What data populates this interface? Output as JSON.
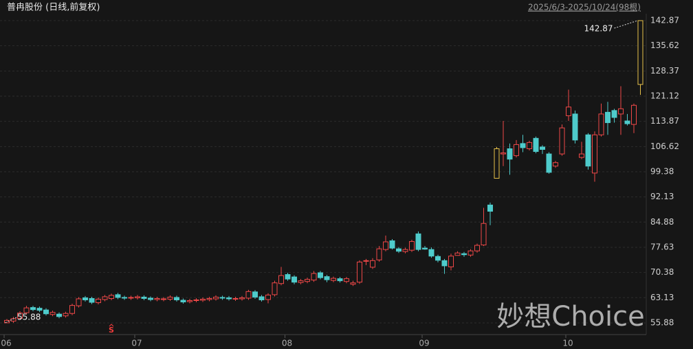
{
  "chart_data": {
    "type": "candlestick",
    "title": "普冉股份 (日线,前复权)",
    "subtitle": "2025/6/3-2025/10/24(98根)",
    "watermark": "妙想Choice",
    "categories": [
      "06",
      null,
      null,
      null,
      null,
      null,
      null,
      null,
      null,
      null,
      null,
      null,
      null,
      null,
      null,
      null,
      null,
      null,
      null,
      null,
      "07",
      null,
      null,
      null,
      null,
      null,
      null,
      null,
      null,
      null,
      null,
      null,
      null,
      null,
      null,
      null,
      null,
      null,
      null,
      null,
      null,
      null,
      null,
      "08",
      null,
      null,
      null,
      null,
      null,
      null,
      null,
      null,
      null,
      null,
      null,
      null,
      null,
      null,
      null,
      null,
      null,
      null,
      null,
      null,
      "09",
      null,
      null,
      null,
      null,
      null,
      null,
      null,
      null,
      null,
      null,
      null,
      null,
      null,
      null,
      null,
      null,
      null,
      null,
      null,
      null,
      null,
      "10",
      null,
      null,
      null,
      null,
      null,
      null,
      null,
      null,
      null,
      null,
      null
    ],
    "open": [
      55.9,
      56.4,
      57.2,
      58.8,
      60.3,
      60.1,
      59.6,
      58.3,
      58.4,
      57.9,
      58.6,
      60.8,
      63.1,
      62.9,
      61.7,
      62.6,
      62.9,
      64.0,
      63.2,
      63.0,
      63.1,
      63.3,
      63.0,
      62.6,
      62.6,
      62.7,
      63.2,
      62.4,
      62.0,
      62.3,
      62.4,
      62.6,
      62.8,
      63.2,
      63.1,
      62.7,
      62.8,
      63.0,
      64.8,
      63.4,
      62.6,
      64.0,
      67.2,
      69.8,
      69.1,
      67.5,
      67.8,
      68.2,
      70.3,
      69.2,
      68.1,
      68.6,
      67.8,
      67.0,
      67.6,
      73.6,
      71.9,
      74.0,
      77.0,
      79.5,
      77.2,
      76.4,
      76.8,
      81.5,
      77.4,
      77.0,
      75.0,
      73.8,
      72.0,
      75.3,
      75.8,
      75.4,
      76.6,
      78.3,
      89.8,
      97.5,
      104.5,
      106.0,
      104.0,
      107.5,
      106.0,
      109.0,
      106.5,
      104.5,
      101.0,
      104.5,
      115.5,
      116.0,
      103.5,
      110.0,
      99.0,
      110.0,
      116.5,
      117.0,
      116.0,
      114.0,
      113.0,
      124.5
    ],
    "high": [
      57.0,
      57.6,
      59.2,
      60.8,
      60.8,
      60.6,
      60.1,
      59.4,
      58.9,
      59.1,
      61.4,
      63.3,
      63.6,
      63.4,
      63.2,
      63.9,
      64.3,
      64.5,
      63.7,
      63.7,
      63.9,
      63.8,
      63.5,
      63.4,
      63.3,
      63.8,
      63.7,
      62.9,
      62.8,
      63.0,
      63.2,
      63.4,
      63.8,
      63.7,
      63.6,
      63.4,
      63.6,
      65.4,
      65.3,
      63.9,
      64.4,
      68.0,
      72.0,
      70.3,
      69.6,
      68.5,
      68.9,
      70.8,
      70.8,
      69.7,
      69.2,
      69.1,
      69.1,
      68.0,
      73.9,
      74.3,
      74.5,
      78.0,
      81.0,
      80.0,
      77.7,
      77.5,
      79.8,
      82.2,
      78.0,
      77.6,
      75.5,
      74.3,
      75.8,
      76.5,
      76.3,
      77.1,
      78.7,
      89.0,
      90.5,
      106.5,
      114.0,
      107.5,
      108.5,
      110.0,
      108.3,
      109.5,
      107.0,
      105.0,
      102.5,
      113.0,
      123.0,
      117.0,
      108.0,
      110.5,
      111.0,
      119.0,
      119.5,
      117.5,
      124.0,
      116.0,
      119.0,
      142.87
    ],
    "low": [
      55.88,
      55.9,
      56.8,
      58.3,
      59.2,
      59.0,
      58.0,
      57.8,
      57.2,
      57.4,
      58.1,
      60.3,
      62.0,
      61.3,
      61.2,
      62.1,
      62.4,
      62.7,
      62.5,
      62.5,
      62.6,
      62.4,
      62.1,
      62.1,
      62.1,
      62.2,
      62.0,
      61.4,
      61.5,
      61.8,
      61.9,
      62.1,
      62.3,
      62.5,
      62.3,
      62.2,
      62.3,
      62.5,
      62.8,
      62.0,
      61.5,
      63.5,
      66.7,
      68.0,
      67.0,
      67.0,
      67.3,
      67.7,
      68.4,
      67.6,
      67.6,
      67.5,
      67.3,
      66.5,
      67.1,
      72.5,
      71.4,
      73.5,
      76.5,
      77.0,
      76.0,
      75.9,
      76.3,
      76.5,
      76.9,
      74.6,
      73.3,
      70.0,
      71.0,
      75.3,
      74.9,
      74.9,
      76.1,
      78.0,
      84.0,
      97.5,
      101.0,
      98.5,
      103.5,
      105.0,
      105.5,
      104.7,
      104.5,
      98.8,
      100.5,
      104.0,
      114.0,
      107.5,
      103.0,
      100.0,
      96.5,
      109.5,
      110.0,
      113.5,
      110.0,
      112.7,
      110.5,
      121.5
    ],
    "close": [
      56.6,
      57.1,
      58.7,
      60.2,
      59.7,
      59.5,
      58.5,
      58.9,
      57.7,
      58.6,
      60.9,
      62.8,
      62.5,
      61.8,
      62.7,
      63.4,
      63.8,
      63.2,
      63.0,
      63.2,
      63.4,
      62.9,
      62.6,
      62.9,
      62.8,
      63.3,
      62.5,
      61.9,
      62.3,
      62.5,
      62.7,
      62.9,
      63.3,
      63.0,
      62.8,
      62.9,
      63.1,
      64.9,
      63.3,
      62.5,
      63.9,
      67.4,
      69.5,
      68.5,
      67.6,
      68.0,
      68.4,
      70.1,
      68.9,
      68.3,
      68.7,
      68.0,
      68.6,
      67.4,
      73.4,
      73.8,
      73.8,
      77.2,
      79.2,
      77.4,
      76.5,
      77.0,
      79.3,
      77.0,
      77.1,
      75.1,
      73.9,
      72.3,
      75.1,
      76.0,
      75.5,
      76.6,
      78.2,
      84.5,
      88.0,
      106.0,
      104.8,
      103.0,
      107.2,
      106.3,
      107.8,
      105.2,
      105.8,
      99.2,
      102.0,
      112.0,
      118.0,
      108.5,
      104.5,
      101.0,
      110.0,
      116.0,
      113.5,
      115.0,
      117.5,
      113.2,
      118.5,
      142.87
    ],
    "up_color": "#f04848",
    "down_color": "#4ecbcb",
    "limit_color": "#e8c24a",
    "limit_up_indices": [
      75,
      97
    ],
    "max_index": 97,
    "min_index": 0,
    "markers": [
      {
        "index": 16,
        "label": "S",
        "color": "#f03c3c"
      }
    ],
    "ylim": [
      52.91,
      144.85
    ],
    "yticks": [
      55.88,
      63.13,
      70.38,
      77.63,
      84.88,
      92.13,
      99.38,
      106.62,
      113.87,
      121.12,
      128.37,
      135.62,
      142.87
    ],
    "grid": true
  }
}
